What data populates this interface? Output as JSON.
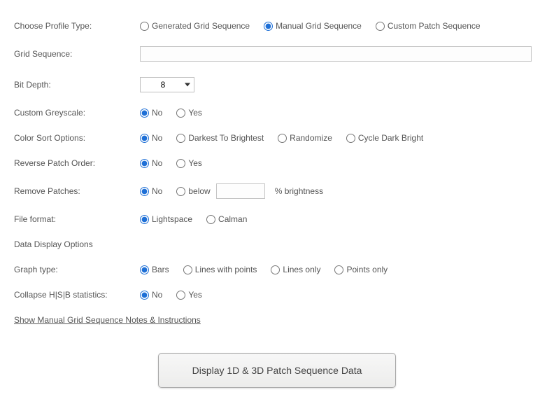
{
  "profileType": {
    "label": "Choose Profile Type:",
    "options": {
      "generated": "Generated Grid Sequence",
      "manual": "Manual Grid Sequence",
      "custom": "Custom Patch Sequence"
    },
    "selected": "manual"
  },
  "gridSequence": {
    "label": "Grid Sequence:",
    "value": ""
  },
  "bitDepth": {
    "label": "Bit Depth:",
    "value": "8"
  },
  "customGreyscale": {
    "label": "Custom Greyscale:",
    "options": {
      "no": "No",
      "yes": "Yes"
    },
    "selected": "no"
  },
  "colorSort": {
    "label": "Color Sort Options:",
    "options": {
      "no": "No",
      "darkest": "Darkest To Brightest",
      "randomize": "Randomize",
      "cycle": "Cycle Dark Bright"
    },
    "selected": "no"
  },
  "reversePatch": {
    "label": "Reverse Patch Order:",
    "options": {
      "no": "No",
      "yes": "Yes"
    },
    "selected": "no"
  },
  "removePatches": {
    "label": "Remove Patches:",
    "options": {
      "no": "No",
      "below": "below"
    },
    "selected": "no",
    "thresholdValue": "",
    "suffix": "% brightness"
  },
  "fileFormat": {
    "label": "File format:",
    "options": {
      "lightspace": "Lightspace",
      "calman": "Calman"
    },
    "selected": "lightspace"
  },
  "dataDisplayHeader": "Data Display Options",
  "graphType": {
    "label": "Graph type:",
    "options": {
      "bars": "Bars",
      "linesPoints": "Lines with points",
      "linesOnly": "Lines only",
      "pointsOnly": "Points only"
    },
    "selected": "bars"
  },
  "collapseHsb": {
    "label": "Collapse H|S|B statistics:",
    "options": {
      "no": "No",
      "yes": "Yes"
    },
    "selected": "no"
  },
  "notesLink": "Show Manual Grid Sequence Notes & Instructions",
  "displayButton": "Display 1D & 3D Patch Sequence Data"
}
